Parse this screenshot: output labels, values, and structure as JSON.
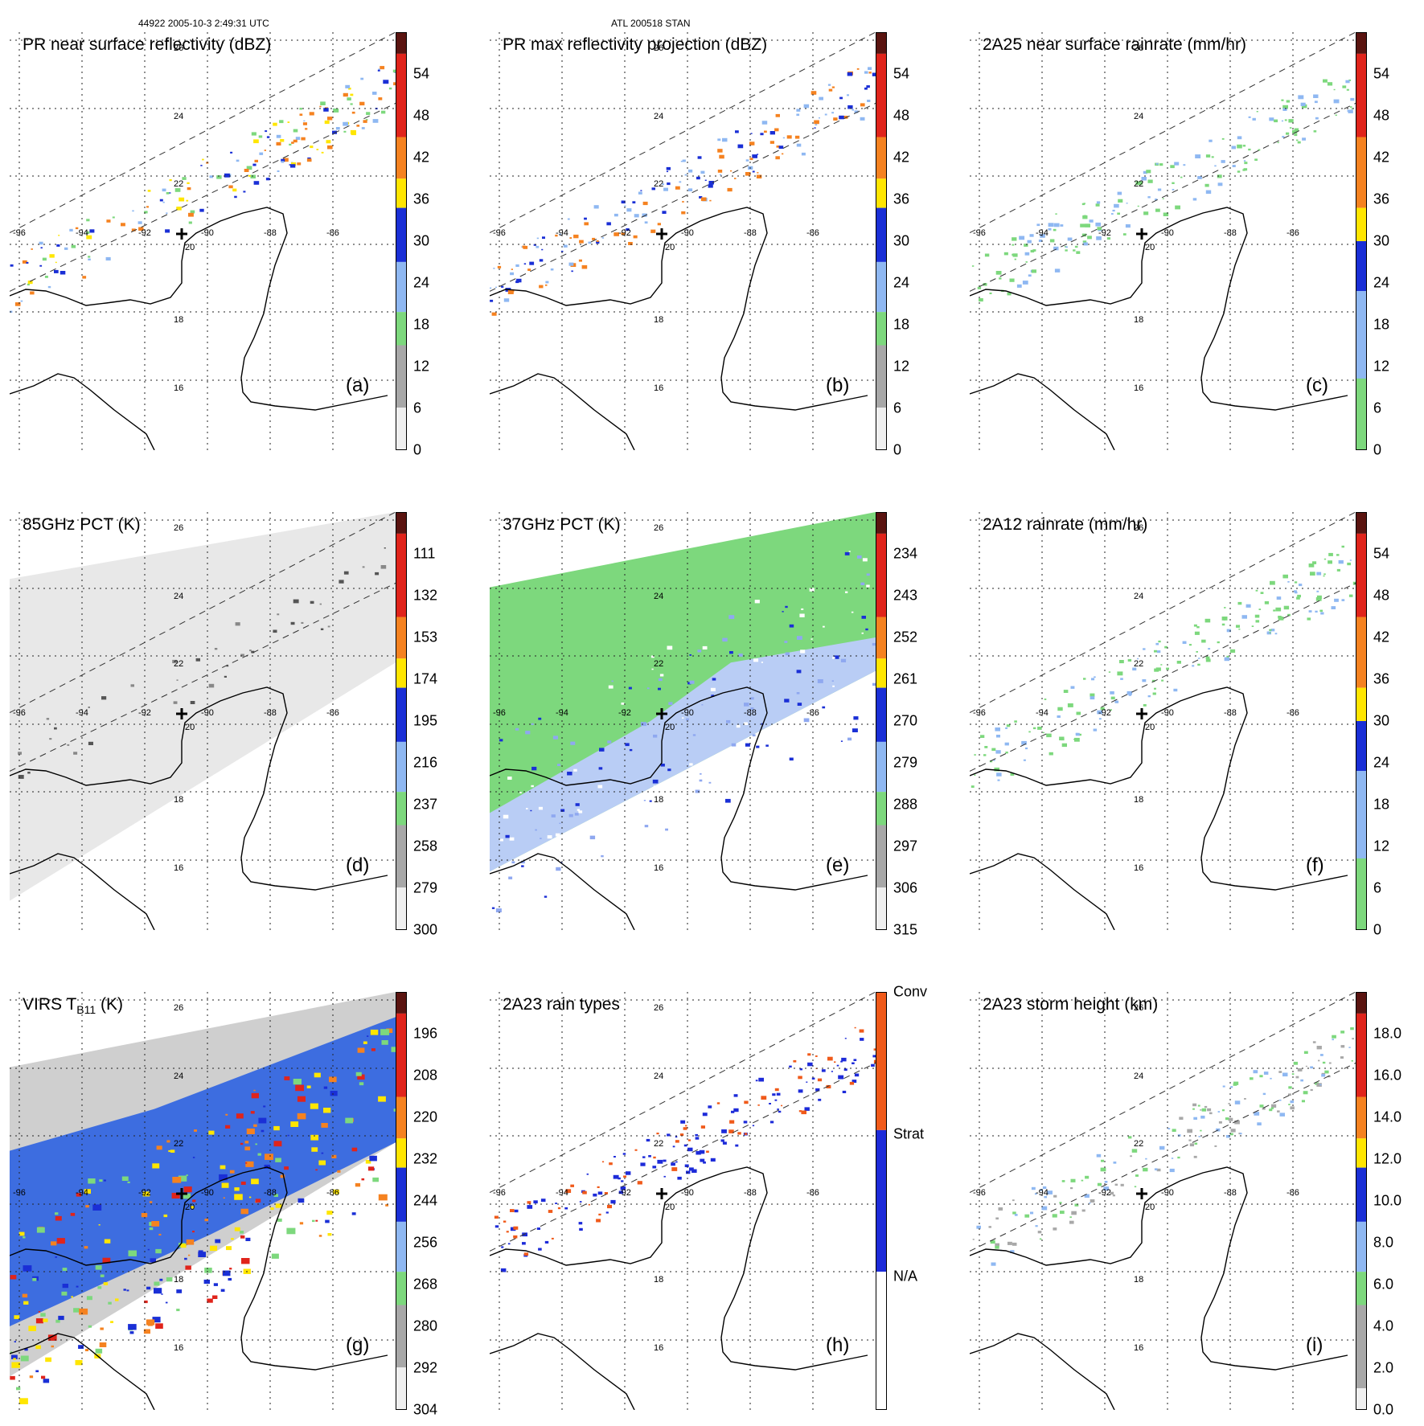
{
  "header": {
    "left": "44922 2005-10-3 2:49:31 UTC",
    "center": "ATL 200518 STAN"
  },
  "lon_labels": [
    "-96",
    "-94",
    "-92",
    "-90",
    "-88",
    "-86"
  ],
  "lat_labels": [
    "26",
    "24",
    "22",
    "20",
    "18",
    "16"
  ],
  "panels": [
    {
      "title": "PR near surface reflectivity (dBZ)",
      "label": "(a)",
      "field": "pr",
      "ticks": [
        "54",
        "48",
        "42",
        "36",
        "30",
        "24",
        "18",
        "12",
        "6",
        "0"
      ]
    },
    {
      "title": "PR max reflectivity projection (dBZ)",
      "label": "(b)",
      "field": "prmax",
      "ticks": [
        "54",
        "48",
        "42",
        "36",
        "30",
        "24",
        "18",
        "12",
        "6",
        "0"
      ]
    },
    {
      "title": "2A25 near surface rainrate (mm/hr)",
      "label": "(c)",
      "field": "rain25",
      "ticks": [
        "54",
        "48",
        "42",
        "36",
        "30",
        "24",
        "18",
        "12",
        "6",
        "0"
      ]
    },
    {
      "title": "85GHz PCT (K)",
      "label": "(d)",
      "field": "pct85",
      "ticks": [
        "111",
        "132",
        "153",
        "174",
        "195",
        "216",
        "237",
        "258",
        "279",
        "300"
      ]
    },
    {
      "title": "37GHz PCT (K)",
      "label": "(e)",
      "field": "pct37",
      "ticks": [
        "234",
        "243",
        "252",
        "261",
        "270",
        "279",
        "288",
        "297",
        "306",
        "315"
      ]
    },
    {
      "title": "2A12 rainrate (mm/hr)",
      "label": "(f)",
      "field": "rain12",
      "ticks": [
        "54",
        "48",
        "42",
        "36",
        "30",
        "24",
        "18",
        "12",
        "6",
        "0"
      ]
    },
    {
      "title": "VIRS T",
      "title_sub": "B11",
      "title_tail": " (K)",
      "label": "(g)",
      "field": "virs",
      "ticks": [
        "196",
        "208",
        "220",
        "232",
        "244",
        "256",
        "268",
        "280",
        "292",
        "304"
      ]
    },
    {
      "title": "2A23 rain types",
      "label": "(h)",
      "field": "types",
      "ticks": [
        "Conv",
        "Strat",
        "N/A"
      ]
    },
    {
      "title": "2A23 storm height (km)",
      "label": "(i)",
      "field": "height",
      "ticks": [
        "18.0",
        "16.0",
        "14.0",
        "12.0",
        "10.0",
        "8.0",
        "6.0",
        "4.0",
        "2.0",
        "0.0"
      ]
    }
  ],
  "colors": {
    "brown": "#6b1a12",
    "red": "#e0241b",
    "orange": "#f58220",
    "yellow": "#ffe600",
    "blue": "#1a2fd6",
    "lightblue": "#8fb8f2",
    "green": "#7dd87d",
    "gray": "#a8a8a8",
    "conv": "#f05a1a",
    "strat": "#1d2bd9"
  }
}
